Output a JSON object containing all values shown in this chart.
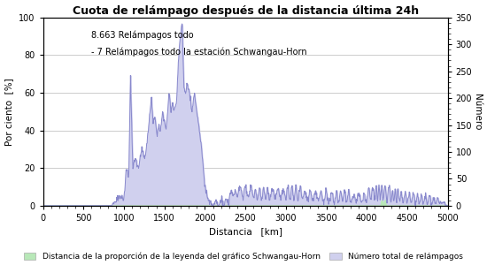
{
  "title": "Cuota de relámpago después de la distancia última 24h",
  "xlabel": "Distancia   [km]",
  "ylabel_left": "Por ciento  [%]",
  "ylabel_right": "Número",
  "annotation1": "8.663 Relámpagos todo",
  "annotation2": "- 7 Relámpagos todo la estación Schwangau-Horn",
  "xlim": [
    0,
    5000
  ],
  "ylim_left": [
    0,
    100
  ],
  "ylim_right": [
    0,
    350
  ],
  "xticks": [
    0,
    500,
    1000,
    1500,
    2000,
    2500,
    3000,
    3500,
    4000,
    4500,
    5000
  ],
  "yticks_left": [
    0,
    20,
    40,
    60,
    80,
    100
  ],
  "yticks_right": [
    0,
    50,
    100,
    150,
    200,
    250,
    300,
    350
  ],
  "line_color": "#8888cc",
  "fill_color_green": "#b8e8b8",
  "fill_color_blue": "#d0d0ee",
  "legend1_label": "Distancia de la proporción de la leyenda del gráfico Schwangau-Horn",
  "legend2_label": "Número total de relámpagos",
  "background_color": "#ffffff",
  "grid_color": "#cccccc"
}
